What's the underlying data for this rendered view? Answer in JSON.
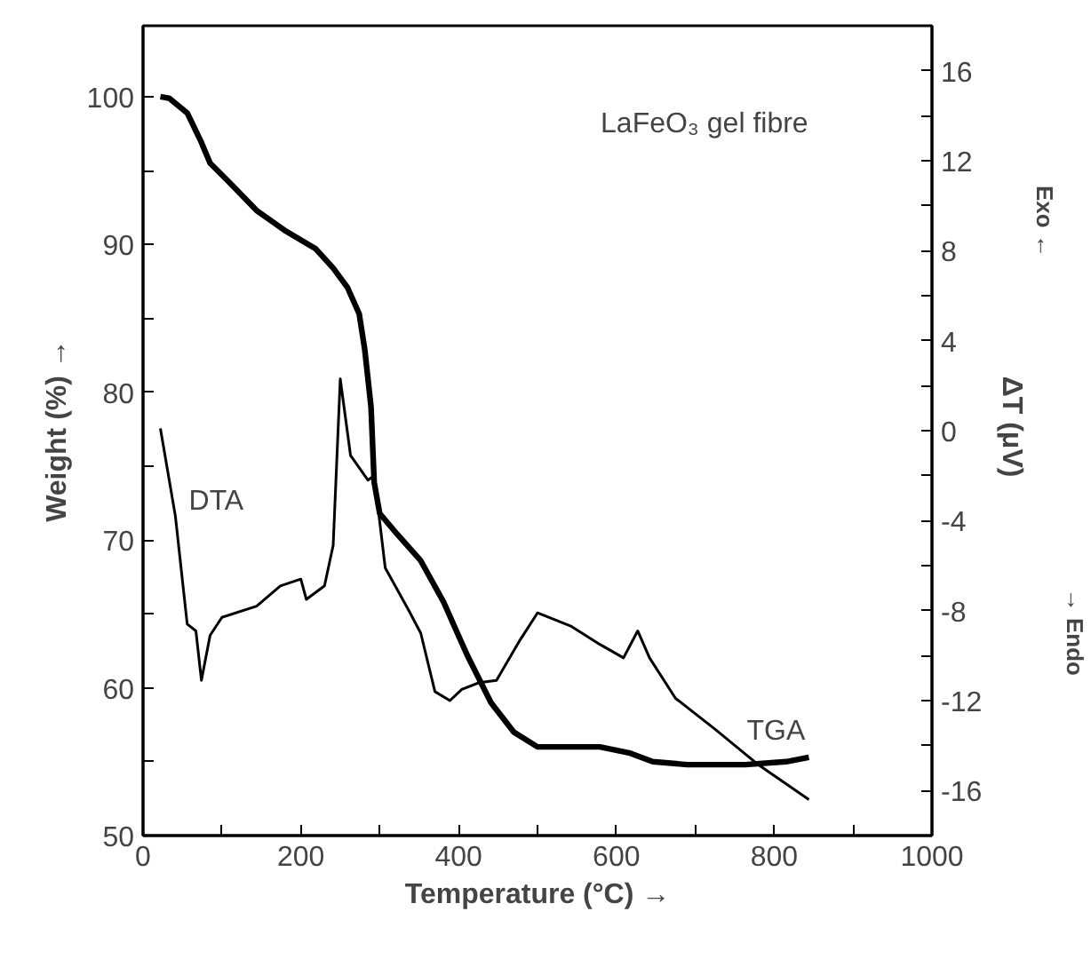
{
  "chart_data": {
    "type": "line",
    "xlabel": "Temperature (°C) →",
    "ylabel": "Weight (%) →",
    "y2label": "ΔT  (μV)",
    "annotations": [
      "LaFeO₃ gel fibre",
      "Exo ←",
      "→ Endo"
    ],
    "xlim": [
      0,
      1000
    ],
    "xticks": [
      0,
      {
        "value": 100,
        "label": null
      },
      200,
      {
        "value": 300,
        "label": null
      },
      400,
      {
        "value": 500,
        "label": null
      },
      600,
      {
        "value": 700,
        "label": null
      },
      800,
      {
        "value": 900,
        "label": null
      },
      1000
    ],
    "ylim": [
      50,
      104.8
    ],
    "yticks": [
      50,
      {
        "value": 55,
        "label": null
      },
      60,
      {
        "value": 65,
        "label": null
      },
      70,
      {
        "value": 75,
        "label": null
      },
      80,
      {
        "value": 85,
        "label": null
      },
      90,
      {
        "value": 95,
        "label": null
      },
      100
    ],
    "y2lim": [
      -18,
      18
    ],
    "y2ticks": [
      -16,
      {
        "value": -14,
        "label": null
      },
      -12,
      {
        "value": -10,
        "label": null
      },
      -8,
      {
        "value": -6,
        "label": null
      },
      -4,
      {
        "value": -2,
        "label": null
      },
      0,
      {
        "value": 2,
        "label": null
      },
      4,
      {
        "value": 6,
        "label": null
      },
      8,
      {
        "value": 10,
        "label": null
      },
      12,
      {
        "value": 14,
        "label": null
      },
      16
    ],
    "grid": false,
    "marker": "none",
    "line_style": "solid",
    "series": [
      {
        "name": "TGA",
        "color": "#000000",
        "x": [
          22,
          33,
          56,
          74,
          85,
          115,
          144,
          181,
          219,
          241,
          259,
          274,
          281,
          289,
          293,
          300,
          322,
          352,
          381,
          411,
          441,
          470,
          500,
          506,
          579,
          616,
          646,
          690,
          763,
          815,
          844
        ],
        "values": [
          100,
          99.9,
          98.9,
          96.9,
          95.5,
          93.9,
          92.3,
          90.9,
          89.7,
          88.4,
          87.1,
          85.3,
          82.9,
          79.0,
          73.9,
          71.8,
          70.4,
          68.6,
          65.8,
          62.2,
          59.0,
          57.0,
          56.0,
          56.0,
          56.0,
          55.6,
          55.0,
          54.8,
          54.8,
          55.0,
          55.3
        ]
      },
      {
        "name": "DTA",
        "color": "#000000",
        "axis": "y2",
        "x": [
          22,
          41,
          56,
          67,
          74,
          85,
          100,
          144,
          174,
          200,
          207,
          230,
          241,
          250,
          263,
          285,
          293,
          307,
          337,
          352,
          370,
          389,
          404,
          426,
          448,
          478,
          500,
          543,
          579,
          609,
          627,
          642,
          675,
          726,
          778,
          844
        ],
        "values": [
          0.1,
          -3.8,
          -8.6,
          -8.9,
          -11.1,
          -9.1,
          -8.3,
          -7.8,
          -6.9,
          -6.6,
          -7.5,
          -6.9,
          -5.1,
          2.3,
          -1.1,
          -2.2,
          -2.0,
          -6.1,
          -8.0,
          -9.0,
          -11.6,
          -12.0,
          -11.5,
          -11.2,
          -11.1,
          -9.3,
          -8.1,
          -8.7,
          -9.5,
          -10.1,
          -8.9,
          -10.1,
          -11.9,
          -13.3,
          -14.8,
          -16.4
        ]
      }
    ]
  }
}
